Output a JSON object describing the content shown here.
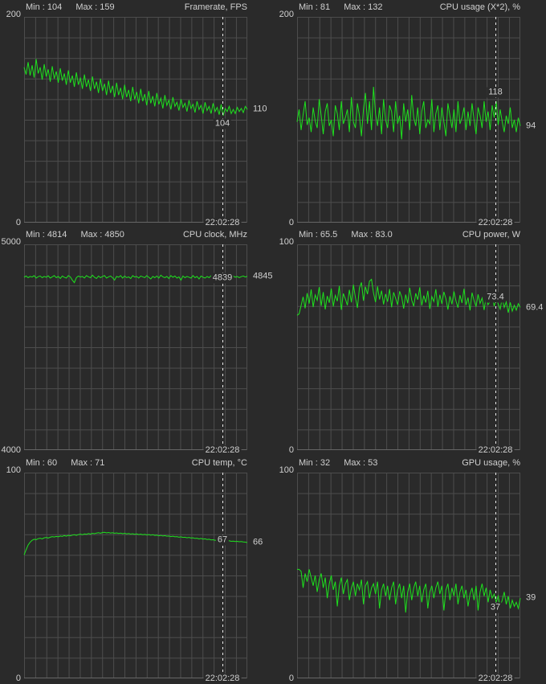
{
  "page": {
    "bg_color": "#2a2a2a",
    "grid_color": "#4d4d4d",
    "text_color": "#d0d0d0",
    "line_color": "#1ee11e",
    "cursor_color": "#ededed"
  },
  "chart_data": [
    {
      "type": "line",
      "title": "Framerate, FPS",
      "min_text": "Min : 104",
      "max_text": "Max : 159",
      "y_top_label": "200",
      "y_bottom_label": "0",
      "ylim": [
        0,
        200
      ],
      "timestamp": "22:02:28",
      "cursor_value": "104",
      "current_value": "110",
      "cursor_label_dy": 10,
      "values": [
        151,
        144,
        156,
        143,
        153,
        141,
        159,
        145,
        151,
        139,
        154,
        142,
        149,
        137,
        152,
        140,
        147,
        136,
        150,
        138,
        145,
        134,
        148,
        136,
        143,
        132,
        146,
        134,
        141,
        130,
        144,
        132,
        139,
        128,
        142,
        130,
        137,
        126,
        140,
        128,
        135,
        124,
        138,
        126,
        133,
        122,
        136,
        124,
        131,
        120,
        134,
        122,
        129,
        118,
        132,
        120,
        127,
        116,
        130,
        118,
        125,
        114,
        128,
        116,
        123,
        113,
        126,
        115,
        121,
        111,
        124,
        114,
        119,
        110,
        122,
        113,
        117,
        109,
        120,
        112,
        116,
        108,
        119,
        111,
        115,
        107,
        118,
        110,
        114,
        106,
        117,
        109,
        113,
        106,
        116,
        108,
        112,
        105,
        115,
        104,
        111,
        108,
        113,
        106,
        110,
        106,
        112,
        108,
        111,
        107,
        113,
        110
      ]
    },
    {
      "type": "line",
      "title": "CPU usage (X*2), %",
      "min_text": "Min : 81",
      "max_text": "Max : 132",
      "y_top_label": "200",
      "y_bottom_label": "0",
      "ylim": [
        0,
        200
      ],
      "timestamp": "22:02:28",
      "cursor_value": "118",
      "current_value": "94",
      "cursor_label_dy": -11,
      "values": [
        98,
        110,
        90,
        105,
        118,
        95,
        102,
        88,
        112,
        99,
        92,
        120,
        104,
        86,
        108,
        116,
        94,
        100,
        84,
        114,
        106,
        90,
        118,
        96,
        102,
        110,
        88,
        122,
        98,
        92,
        116,
        104,
        84,
        110,
        126,
        96,
        118,
        90,
        132,
        106,
        94,
        112,
        86,
        120,
        100,
        92,
        114,
        108,
        88,
        118,
        96,
        104,
        81,
        116,
        98,
        110,
        90,
        124,
        102,
        94,
        112,
        86,
        108,
        118,
        92,
        100,
        96,
        120,
        88,
        106,
        114,
        90,
        112,
        98,
        84,
        116,
        104,
        92,
        110,
        88,
        118,
        96,
        102,
        112,
        90,
        108,
        94,
        116,
        100,
        86,
        112,
        104,
        92,
        118,
        98,
        108,
        90,
        114,
        102,
        118,
        95,
        110,
        98,
        88,
        104,
        96,
        112,
        92,
        100,
        88,
        102,
        94
      ]
    },
    {
      "type": "line",
      "title": "CPU clock, MHz",
      "min_text": "Min : 4814",
      "max_text": "Max : 4850",
      "y_top_label": "5000",
      "y_bottom_label": "4000",
      "ylim": [
        4000,
        5000
      ],
      "timestamp": "22:02:28",
      "cursor_value": "4839",
      "current_value": "4845",
      "cursor_label_dy": 0,
      "values": [
        4840,
        4846,
        4838,
        4844,
        4841,
        4848,
        4836,
        4843,
        4846,
        4838,
        4844,
        4840,
        4847,
        4836,
        4842,
        4848,
        4838,
        4844,
        4834,
        4846,
        4840,
        4836,
        4848,
        4842,
        4826,
        4814,
        4838,
        4846,
        4841,
        4844,
        4836,
        4848,
        4842,
        4838,
        4850,
        4840,
        4834,
        4846,
        4838,
        4844,
        4848,
        4836,
        4842,
        4846,
        4838,
        4826,
        4844,
        4840,
        4848,
        4836,
        4846,
        4838,
        4842,
        4834,
        4848,
        4841,
        4844,
        4836,
        4846,
        4842,
        4838,
        4848,
        4840,
        4832,
        4844,
        4838,
        4846,
        4836,
        4850,
        4842,
        4838,
        4844,
        4834,
        4848,
        4840,
        4846,
        4836,
        4842,
        4826,
        4846,
        4838,
        4844,
        4840,
        4836,
        4848,
        4838,
        4844,
        4832,
        4846,
        4840,
        4836,
        4844,
        4838,
        4848,
        4842,
        4834,
        4844,
        4838,
        4842,
        4839,
        4836,
        4845,
        4841,
        4837,
        4846,
        4840,
        4844,
        4838,
        4843,
        4846,
        4841,
        4845
      ]
    },
    {
      "type": "line",
      "title": "CPU power, W",
      "min_text": "Min : 65.5",
      "max_text": "Max : 83.0",
      "y_top_label": "100",
      "y_bottom_label": "0",
      "ylim": [
        0,
        100
      ],
      "timestamp": "22:02:28",
      "cursor_value": "73.4",
      "current_value": "69.4",
      "cursor_label_dy": -2,
      "values": [
        65.5,
        66.2,
        70.2,
        74.5,
        68.9,
        76.3,
        71.2,
        78.1,
        69.5,
        75.4,
        72.8,
        79.2,
        70.1,
        76.8,
        68.4,
        74.9,
        71.6,
        78.5,
        69.8,
        75.2,
        72.4,
        79.8,
        68.2,
        76.1,
        73.5,
        70.4,
        77.9,
        71.8,
        80.4,
        74.2,
        69.1,
        78.8,
        81.5,
        72.6,
        79.4,
        75.8,
        82.1,
        83.0,
        76.4,
        71.9,
        79.6,
        73.2,
        77.5,
        70.8,
        75.9,
        72.1,
        78.3,
        69.4,
        76.7,
        73.8,
        70.6,
        77.2,
        74.4,
        68.8,
        75.6,
        71.4,
        78.9,
        72.9,
        69.9,
        76.2,
        73.1,
        79.1,
        70.3,
        75.1,
        71.7,
        77.4,
        68.6,
        74.6,
        72.2,
        78.2,
        69.6,
        75.5,
        71.1,
        76.9,
        73.6,
        68.3,
        74.8,
        70.9,
        77.1,
        72.5,
        69.2,
        75.3,
        71.5,
        78.4,
        70.5,
        74.1,
        67.9,
        76.5,
        72.7,
        69.7,
        75.7,
        71.3,
        73.9,
        68.1,
        74.3,
        70.7,
        72.3,
        75.0,
        70.0,
        73.4,
        71.0,
        68.5,
        74.0,
        69.3,
        72.0,
        66.8,
        71.8,
        67.5,
        70.4,
        68.0,
        71.2,
        69.4
      ]
    },
    {
      "type": "line",
      "title": "CPU temp, °C",
      "min_text": "Min : 60",
      "max_text": "Max : 71",
      "y_top_label": "100",
      "y_bottom_label": "0",
      "ylim": [
        0,
        100
      ],
      "timestamp": "22:02:28",
      "cursor_value": "67",
      "current_value": "66",
      "cursor_label_dy": 0,
      "values": [
        60.0,
        62.5,
        64.8,
        66.2,
        67.1,
        67.6,
        67.4,
        67.9,
        68.1,
        67.8,
        68.3,
        68.5,
        68.2,
        68.6,
        68.9,
        68.7,
        69.0,
        68.8,
        69.2,
        69.0,
        69.4,
        69.1,
        69.5,
        69.3,
        69.6,
        69.8,
        69.5,
        69.9,
        70.1,
        69.8,
        70.2,
        70.0,
        70.4,
        70.1,
        70.5,
        70.3,
        70.6,
        70.8,
        70.5,
        70.9,
        71.0,
        70.7,
        70.9,
        70.6,
        70.8,
        70.5,
        70.7,
        70.4,
        70.6,
        70.3,
        70.5,
        70.2,
        70.4,
        70.1,
        70.3,
        70.0,
        70.2,
        69.9,
        70.1,
        69.8,
        70.0,
        69.7,
        69.9,
        69.6,
        69.8,
        69.5,
        69.6,
        69.3,
        69.5,
        69.2,
        69.4,
        69.1,
        69.2,
        68.9,
        69.1,
        68.8,
        68.9,
        68.6,
        68.8,
        68.5,
        68.6,
        68.3,
        68.5,
        68.2,
        68.3,
        68.0,
        68.1,
        67.8,
        68.0,
        67.7,
        67.8,
        67.5,
        67.6,
        67.3,
        67.4,
        67.1,
        67.2,
        66.9,
        67.0,
        67.0,
        66.9,
        66.8,
        66.9,
        66.6,
        66.7,
        66.5,
        66.6,
        66.4,
        66.5,
        66.3,
        66.2,
        66.0
      ]
    },
    {
      "type": "line",
      "title": "GPU usage, %",
      "min_text": "Min : 32",
      "max_text": "Max : 53",
      "y_top_label": "100",
      "y_bottom_label": "0",
      "ylim": [
        0,
        100
      ],
      "timestamp": "22:02:28",
      "cursor_value": "37",
      "current_value": "39",
      "cursor_label_dy": 7,
      "values": [
        53,
        53,
        52,
        44,
        51,
        47,
        53,
        49,
        45,
        50,
        42,
        48,
        51,
        44,
        49,
        39,
        46,
        50,
        43,
        47,
        35,
        45,
        49,
        41,
        46,
        48,
        38,
        44,
        47,
        40,
        46,
        43,
        48,
        36,
        45,
        47,
        39,
        44,
        46,
        41,
        47,
        34,
        43,
        46,
        40,
        45,
        38,
        44,
        47,
        36,
        43,
        46,
        39,
        45,
        32,
        42,
        46,
        38,
        44,
        47,
        40,
        45,
        37,
        43,
        46,
        34,
        42,
        45,
        39,
        44,
        47,
        41,
        45,
        33,
        43,
        46,
        38,
        44,
        40,
        46,
        36,
        42,
        45,
        39,
        43,
        35,
        41,
        44,
        38,
        45,
        33,
        42,
        46,
        40,
        44,
        37,
        43,
        39,
        41,
        37,
        40,
        35,
        38,
        42,
        36,
        40,
        34,
        38,
        35,
        37,
        34,
        39
      ]
    }
  ]
}
